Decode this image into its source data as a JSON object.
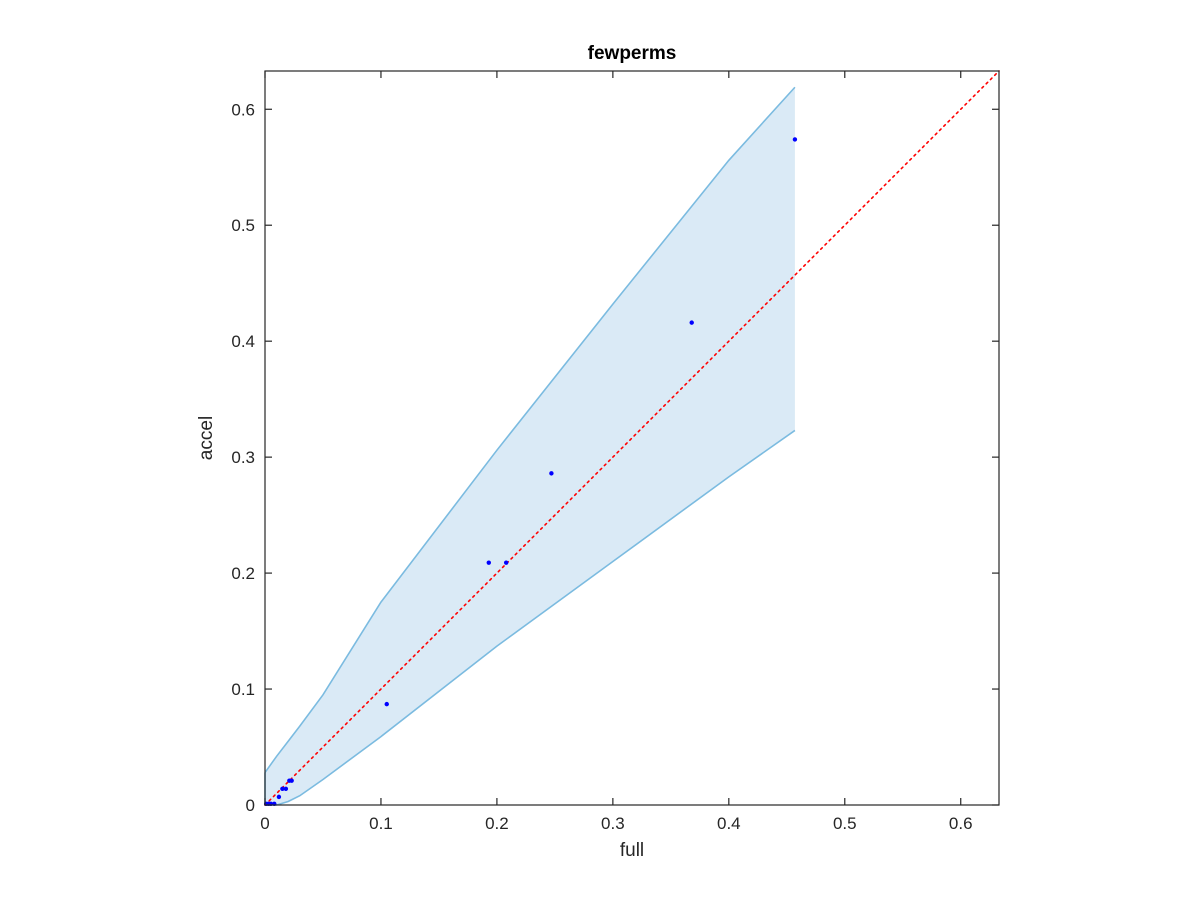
{
  "chart_data": {
    "type": "scatter",
    "title": "fewperms",
    "xlabel": "full",
    "ylabel": "accel",
    "xlim": [
      0,
      0.633
    ],
    "ylim": [
      0,
      0.633
    ],
    "xticks": [
      0,
      0.1,
      0.2,
      0.3,
      0.4,
      0.5,
      0.6
    ],
    "yticks": [
      0,
      0.1,
      0.2,
      0.3,
      0.4,
      0.5,
      0.6
    ],
    "xtick_labels": [
      "0",
      "0.1",
      "0.2",
      "0.3",
      "0.4",
      "0.5",
      "0.6"
    ],
    "ytick_labels": [
      "0",
      "0.1",
      "0.2",
      "0.3",
      "0.4",
      "0.5",
      "0.6"
    ],
    "grid": false,
    "series": [
      {
        "kind": "points",
        "color": "#0000ff",
        "x": [
          0.001,
          0.003,
          0.005,
          0.008,
          0.012,
          0.015,
          0.018,
          0.021,
          0.023,
          0.105,
          0.193,
          0.208,
          0.247,
          0.368,
          0.457
        ],
        "y": [
          0.001,
          0.001,
          0.001,
          0.001,
          0.007,
          0.014,
          0.014,
          0.021,
          0.021,
          0.087,
          0.209,
          0.209,
          0.286,
          0.416,
          0.574
        ]
      },
      {
        "kind": "identity-line",
        "color": "#ff0000",
        "style": "dotted",
        "x": [
          0,
          0.633
        ],
        "y": [
          0,
          0.633
        ]
      },
      {
        "kind": "confidence-band",
        "fill": "#daeaf6",
        "stroke": "#7bbbe0",
        "x": [
          0,
          0.01,
          0.02,
          0.03,
          0.05,
          0.1,
          0.2,
          0.3,
          0.4,
          0.457
        ],
        "upper": [
          0.028,
          0.042,
          0.055,
          0.068,
          0.095,
          0.175,
          0.306,
          0.432,
          0.556,
          0.619
        ],
        "lower": [
          0,
          0,
          0.003,
          0.008,
          0.022,
          0.059,
          0.137,
          0.21,
          0.283,
          0.323
        ]
      }
    ]
  }
}
